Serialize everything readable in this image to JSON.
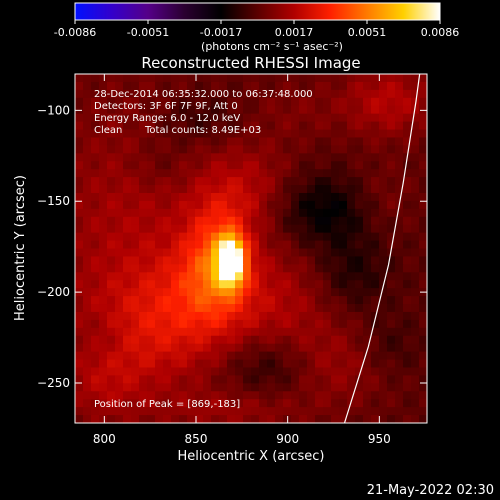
{
  "chart_data": {
    "type": "heatmap",
    "title": "Reconstructed RHESSI Image",
    "xlabel": "Heliocentric X (arcsec)",
    "ylabel": "Heliocentric Y (arcsec)",
    "xlim": [
      784,
      976
    ],
    "ylim": [
      -272,
      -80
    ],
    "x_ticks": [
      800,
      850,
      900,
      950
    ],
    "y_ticks": [
      -100,
      -150,
      -200,
      -250
    ],
    "colorbar": {
      "range": [
        -0.0086,
        0.0086
      ],
      "ticks": [
        "-0.0086",
        "-0.0051",
        "-0.0017",
        "0.0017",
        "0.0051",
        "0.0086"
      ],
      "unit_label": "(photons cm⁻² s⁻¹ asec⁻²)",
      "colormap_colors": [
        "#0010ff",
        "#3300cc",
        "#550088",
        "#2a0030",
        "#000000",
        "#5a0000",
        "#b00000",
        "#ff2000",
        "#ff7a00",
        "#ffd000",
        "#ffffff"
      ]
    },
    "annotations": {
      "time_range": "28-Dec-2014 06:35:32.000 to 06:37:48.000",
      "detectors": "Detectors: 3F 6F 7F 9F, Att 0",
      "energy": "Energy Range: 6.0 - 12.0 keV",
      "method": "Clean",
      "counts": "Total counts: 8.49E+03",
      "peak": "Position of Peak = [869,-183]"
    },
    "peak": {
      "x": 869,
      "y": -183,
      "value": 0.0086
    },
    "limb_curve": [
      [
        931,
        -272
      ],
      [
        944,
        -230
      ],
      [
        955,
        -185
      ],
      [
        963,
        -140
      ],
      [
        970,
        -95
      ],
      [
        972,
        -80
      ]
    ],
    "blobs": [
      {
        "x": 869,
        "y": -183,
        "sx": 5,
        "sy": 9,
        "v": 0.0086
      },
      {
        "x": 862,
        "y": -180,
        "sx": 12,
        "sy": 22,
        "v": 0.0028
      },
      {
        "x": 855,
        "y": -195,
        "sx": 18,
        "sy": 18,
        "v": 0.0014
      },
      {
        "x": 815,
        "y": -170,
        "sx": 35,
        "sy": 55,
        "v": 0.0015
      },
      {
        "x": 832,
        "y": -220,
        "sx": 28,
        "sy": 22,
        "v": 0.0018
      },
      {
        "x": 880,
        "y": -145,
        "sx": 18,
        "sy": 18,
        "v": 0.0016
      },
      {
        "x": 895,
        "y": -205,
        "sx": 22,
        "sy": 22,
        "v": 0.0014
      },
      {
        "x": 955,
        "y": -95,
        "sx": 18,
        "sy": 14,
        "v": 0.0018
      },
      {
        "x": 950,
        "y": -150,
        "sx": 14,
        "sy": 14,
        "v": 0.0009
      },
      {
        "x": 925,
        "y": -240,
        "sx": 22,
        "sy": 16,
        "v": 0.0012
      },
      {
        "x": 800,
        "y": -250,
        "sx": 16,
        "sy": 16,
        "v": 0.0011
      },
      {
        "x": 870,
        "y": -265,
        "sx": 30,
        "sy": 8,
        "v": 0.001
      },
      {
        "x": 905,
        "y": -100,
        "sx": 18,
        "sy": 12,
        "v": 0.0006
      },
      {
        "x": 920,
        "y": -155,
        "sx": 22,
        "sy": 14,
        "v": -0.002
      },
      {
        "x": 935,
        "y": -190,
        "sx": 14,
        "sy": 14,
        "v": -0.0012
      },
      {
        "x": 890,
        "y": -240,
        "sx": 18,
        "sy": 12,
        "v": -0.0014
      },
      {
        "x": 850,
        "y": -105,
        "sx": 16,
        "sy": 10,
        "v": -0.001
      },
      {
        "x": 830,
        "y": -130,
        "sx": 12,
        "sy": 10,
        "v": -0.0007
      },
      {
        "x": 800,
        "y": -225,
        "sx": 10,
        "sy": 10,
        "v": -0.0006
      },
      {
        "x": 955,
        "y": -230,
        "sx": 12,
        "sy": 12,
        "v": -0.0008
      }
    ]
  },
  "footer": {
    "timestamp": "21-May-2022 02:30"
  }
}
